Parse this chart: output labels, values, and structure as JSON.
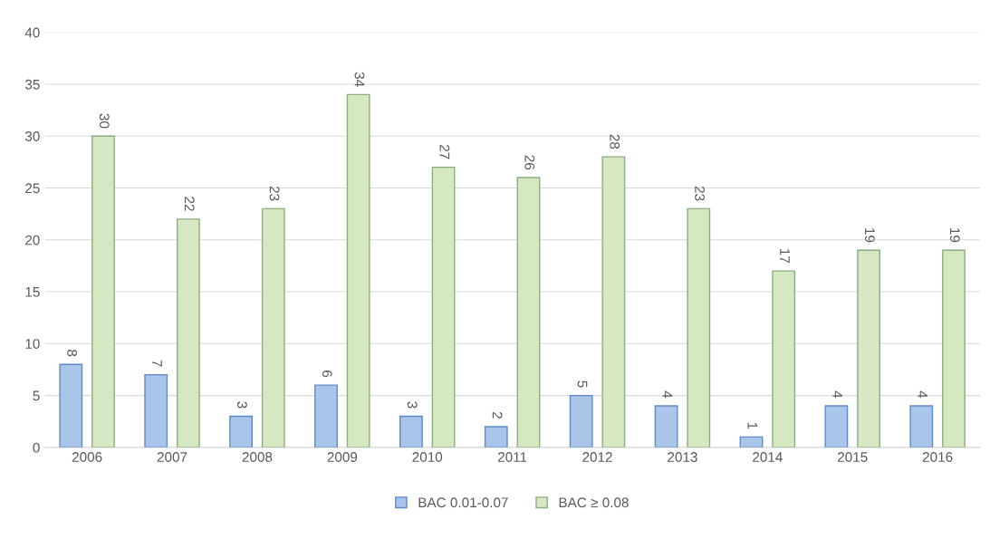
{
  "chart_data": {
    "type": "bar",
    "categories": [
      "2006",
      "2007",
      "2008",
      "2009",
      "2010",
      "2011",
      "2012",
      "2013",
      "2014",
      "2015",
      "2016"
    ],
    "series": [
      {
        "name": "BAC 0.01-0.07",
        "color": "#a9c5ea",
        "values": [
          8,
          7,
          3,
          6,
          3,
          2,
          5,
          4,
          1,
          4,
          4
        ]
      },
      {
        "name": "BAC ≥ 0.08",
        "color": "#d5e8c2",
        "values": [
          30,
          22,
          23,
          34,
          27,
          26,
          28,
          23,
          17,
          19,
          19
        ]
      }
    ],
    "ylim": [
      0,
      40
    ],
    "yticks": [
      0,
      5,
      10,
      15,
      20,
      25,
      30,
      35,
      40
    ],
    "grid": "y",
    "legend": "bottom",
    "data_labels": true
  }
}
